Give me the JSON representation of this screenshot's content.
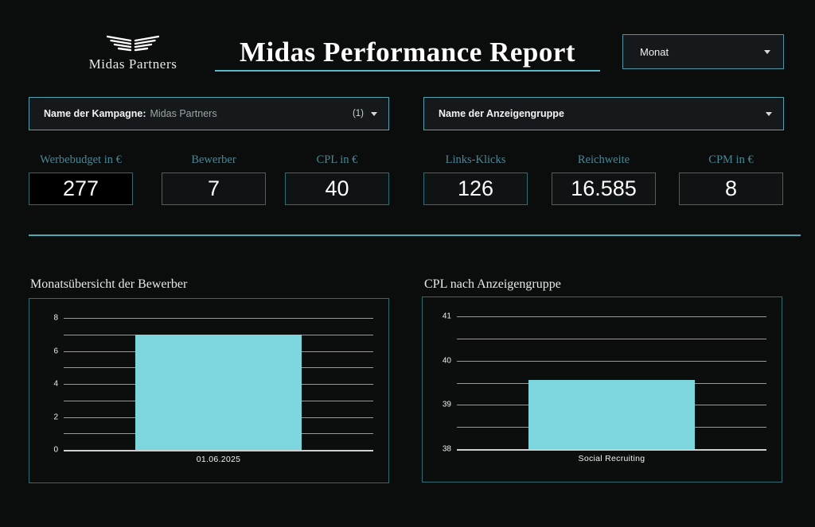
{
  "colors": {
    "background": "#0b0c0c",
    "accent_teal": "#4ea8b3",
    "border_teal": "#2d6b77",
    "control_border_teal": "#4fa3af",
    "kpi_label_teal": "#4a8795",
    "bar_fill": "#7dd6de",
    "text_white": "#ffffff"
  },
  "header": {
    "logo_text": "Midas Partners",
    "title": "Midas Performance Report",
    "date_filter": {
      "label": "Monat"
    }
  },
  "filters": [
    {
      "label": "Name der Kampagne:",
      "value": "Midas Partners",
      "count": "(1)"
    },
    {
      "label": "Name der Anzeigengruppe",
      "value": "",
      "count": ""
    }
  ],
  "kpis": [
    {
      "label": "Werbebudget in €",
      "value": "277"
    },
    {
      "label": "Bewerber",
      "value": "7"
    },
    {
      "label": "CPL in €",
      "value": "40"
    },
    {
      "label": "Links-Klicks",
      "value": "126"
    },
    {
      "label": "Reichweite",
      "value": "16.585"
    },
    {
      "label": "CPM in €",
      "value": "8"
    }
  ],
  "chart_data": [
    {
      "type": "bar",
      "title": "Monatsübersicht der Bewerber",
      "categories": [
        "01.06.2025"
      ],
      "values": [
        7
      ],
      "xlabel": "",
      "ylabel": "",
      "ylim": [
        0,
        8
      ],
      "yticks": [
        0,
        2,
        4,
        6,
        8
      ],
      "grid_step": 1,
      "grid": true,
      "legend": "none",
      "bar_color": "#7dd6de"
    },
    {
      "type": "bar",
      "title": "CPL nach Anzeigengruppe",
      "categories": [
        "Social Recruiting"
      ],
      "values": [
        39.57
      ],
      "xlabel": "",
      "ylabel": "",
      "ylim": [
        38,
        41
      ],
      "yticks": [
        38,
        39,
        40,
        41
      ],
      "grid_step": 0.5,
      "grid": true,
      "legend": "none",
      "bar_color": "#7dd6de"
    }
  ]
}
